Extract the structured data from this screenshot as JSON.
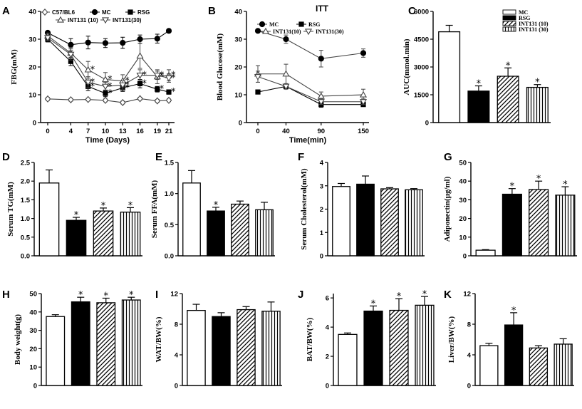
{
  "colors": {
    "ink": "#000000",
    "paper": "#ffffff",
    "grey": "#444444"
  },
  "groups": [
    "MC",
    "RSG",
    "INT131 (10)",
    "INT131 (30)"
  ],
  "chart_data": [
    {
      "id": "A",
      "label": "A",
      "type": "line",
      "title": "",
      "xlabel": "Time (Days)",
      "ylabel": "FBG(mM)",
      "xticks": [
        0,
        4,
        7,
        10,
        13,
        16,
        19,
        21
      ],
      "xlim": [
        0,
        21
      ],
      "yticks": [
        0,
        10,
        20,
        30,
        40
      ],
      "ylim": [
        0,
        40
      ],
      "legend": [
        "C57/BL6",
        "MC",
        "RSG",
        "INT131 (10)",
        "INT131(30)"
      ],
      "series": [
        {
          "name": "C57/BL6",
          "marker": "diamond-open",
          "color": "#444444",
          "x": [
            0,
            4,
            7,
            10,
            13,
            16,
            19,
            21
          ],
          "y": [
            8.5,
            8.2,
            8.3,
            8.0,
            7.2,
            8.6,
            7.8,
            8.0
          ],
          "err": [
            0.5,
            0.5,
            0.5,
            0.5,
            0.5,
            0.5,
            0.5,
            0.5
          ],
          "sig": []
        },
        {
          "name": "MC",
          "marker": "circle-filled",
          "color": "#000000",
          "x": [
            0,
            4,
            7,
            10,
            13,
            16,
            19,
            21
          ],
          "y": [
            32.3,
            28.0,
            28.8,
            28.6,
            28.7,
            30.0,
            30.2,
            33.0
          ],
          "err": [
            0.6,
            2.2,
            2.3,
            1.6,
            2.0,
            1.5,
            1.6,
            0.6
          ],
          "sig": []
        },
        {
          "name": "RSG",
          "marker": "square-filled",
          "color": "#000000",
          "x": [
            0,
            4,
            7,
            10,
            13,
            16,
            19,
            21
          ],
          "y": [
            30.0,
            22.0,
            13.0,
            10.5,
            12.5,
            14.0,
            12.0,
            11.0
          ],
          "err": [
            1.0,
            1.5,
            1.5,
            1.2,
            1.3,
            1.5,
            1.0,
            0.8
          ],
          "sig": [
            7,
            10,
            13,
            16,
            19,
            21
          ]
        },
        {
          "name": "INT131 (10)",
          "marker": "triangle-up-open",
          "color": "#444444",
          "x": [
            0,
            4,
            7,
            10,
            13,
            16,
            19,
            21
          ],
          "y": [
            31.2,
            25.0,
            19.0,
            15.5,
            15.0,
            24.0,
            16.5,
            17.0
          ],
          "err": [
            1.0,
            2.0,
            3.0,
            2.5,
            2.2,
            4.5,
            2.5,
            2.0
          ],
          "sig": [
            7,
            10,
            13,
            19,
            21
          ]
        },
        {
          "name": "INT131(30)",
          "marker": "triangle-down-open",
          "color": "#444444",
          "x": [
            0,
            4,
            7,
            10,
            13,
            16,
            19,
            21
          ],
          "y": [
            30.5,
            24.5,
            14.5,
            13.0,
            13.5,
            17.0,
            17.0,
            16.0
          ],
          "err": [
            1.0,
            2.0,
            2.0,
            1.5,
            1.5,
            2.0,
            1.5,
            1.5
          ],
          "sig": [
            7,
            10,
            13,
            16,
            19,
            21
          ]
        }
      ]
    },
    {
      "id": "B",
      "label": "B",
      "type": "line",
      "title": "ITT",
      "xlabel": "Time(min)",
      "ylabel": "Blood Glucose(mM)",
      "xticks": [
        0,
        40,
        90,
        150
      ],
      "xlim": [
        0,
        150
      ],
      "yticks": [
        0,
        10,
        20,
        30,
        40
      ],
      "ylim": [
        0,
        40
      ],
      "legend": [
        "MC",
        "RSG",
        "INT131(10)",
        "INT131(30)"
      ],
      "series": [
        {
          "name": "MC",
          "marker": "circle-filled",
          "color": "#444444",
          "x": [
            0,
            40,
            90,
            150
          ],
          "y": [
            33.0,
            30.0,
            23.0,
            25.0
          ],
          "err": [
            0.5,
            1.5,
            3.0,
            1.5
          ],
          "sig": []
        },
        {
          "name": "RSG",
          "marker": "square-filled",
          "color": "#000000",
          "x": [
            0,
            40,
            90,
            150
          ],
          "y": [
            11.0,
            13.0,
            6.5,
            6.5
          ],
          "err": [
            0.5,
            0.8,
            1.0,
            0.5
          ],
          "sig": []
        },
        {
          "name": "INT131(10)",
          "marker": "triangle-up-open",
          "color": "#444444",
          "x": [
            0,
            40,
            90,
            150
          ],
          "y": [
            17.5,
            17.5,
            9.5,
            10.0
          ],
          "err": [
            3.0,
            3.5,
            1.5,
            2.0
          ],
          "sig": []
        },
        {
          "name": "INT131(30)",
          "marker": "triangle-down-open",
          "color": "#444444",
          "x": [
            0,
            40,
            90,
            150
          ],
          "y": [
            16.5,
            13.0,
            7.5,
            7.5
          ],
          "err": [
            2.0,
            1.0,
            1.0,
            1.0
          ],
          "sig": []
        }
      ]
    },
    {
      "id": "C",
      "label": "C",
      "type": "bar",
      "title": "",
      "xlabel": "",
      "ylabel": "AUC(mmol.min)",
      "yticks": [
        0,
        1500,
        3000,
        4500,
        6000
      ],
      "ylim": [
        0,
        6000
      ],
      "values": [
        4900,
        1700,
        2500,
        1900
      ],
      "err": [
        350,
        280,
        450,
        150
      ],
      "sig": [
        false,
        true,
        true,
        true
      ],
      "legend": [
        "MC",
        "RSG",
        "INT131 (10)",
        "INT131 (30)"
      ]
    },
    {
      "id": "D",
      "label": "D",
      "type": "bar",
      "title": "",
      "xlabel": "",
      "ylabel": "Serum TG(mM)",
      "yticks": [
        0.0,
        0.5,
        1.0,
        1.5,
        2.0,
        2.5
      ],
      "ylim": [
        0,
        2.5
      ],
      "values": [
        1.95,
        0.95,
        1.2,
        1.17
      ],
      "err": [
        0.35,
        0.08,
        0.08,
        0.12
      ],
      "sig": [
        false,
        true,
        true,
        true
      ]
    },
    {
      "id": "E",
      "label": "E",
      "type": "bar",
      "title": "",
      "xlabel": "",
      "ylabel": "Serum FFA(mM)",
      "yticks": [
        0.0,
        0.5,
        1.0,
        1.5
      ],
      "ylim": [
        0,
        1.5
      ],
      "values": [
        1.17,
        0.72,
        0.83,
        0.74
      ],
      "err": [
        0.2,
        0.06,
        0.05,
        0.12
      ],
      "sig": [
        false,
        true,
        false,
        false
      ]
    },
    {
      "id": "F",
      "label": "F",
      "type": "bar",
      "title": "",
      "xlabel": "",
      "ylabel": "Serum Cholesterol(mM)",
      "yticks": [
        0,
        1,
        2,
        3,
        4
      ],
      "ylim": [
        0,
        4
      ],
      "values": [
        2.97,
        3.07,
        2.87,
        2.83
      ],
      "err": [
        0.13,
        0.35,
        0.05,
        0.05
      ],
      "sig": [
        false,
        false,
        false,
        false
      ]
    },
    {
      "id": "G",
      "label": "G",
      "type": "bar",
      "title": "",
      "xlabel": "",
      "ylabel": "Adiponectin(μg/ml)",
      "yticks": [
        0,
        10,
        20,
        30,
        40,
        50
      ],
      "ylim": [
        0,
        50
      ],
      "values": [
        3.0,
        33.0,
        35.5,
        32.5
      ],
      "err": [
        0.3,
        3.0,
        4.5,
        4.5
      ],
      "sig": [
        false,
        true,
        true,
        true
      ]
    },
    {
      "id": "H",
      "label": "H",
      "type": "bar",
      "title": "",
      "xlabel": "",
      "ylabel": "Body weight(g)",
      "yticks": [
        0,
        10,
        20,
        30,
        40,
        50
      ],
      "ylim": [
        0,
        50
      ],
      "values": [
        37.5,
        45.5,
        45.0,
        46.5
      ],
      "err": [
        1.0,
        2.5,
        2.5,
        1.5
      ],
      "sig": [
        false,
        true,
        true,
        true
      ]
    },
    {
      "id": "I",
      "label": "I",
      "type": "bar",
      "title": "",
      "xlabel": "",
      "ylabel": "WAT/BW(%)",
      "yticks": [
        0,
        4,
        8,
        12
      ],
      "ylim": [
        0,
        12
      ],
      "values": [
        9.8,
        9.0,
        9.9,
        9.7
      ],
      "err": [
        0.8,
        0.5,
        0.4,
        1.2
      ],
      "sig": [
        false,
        false,
        false,
        false
      ]
    },
    {
      "id": "J",
      "label": "J",
      "type": "bar",
      "title": "",
      "xlabel": "",
      "ylabel": "BAT/BW(%)",
      "yticks": [
        0,
        2,
        4,
        6
      ],
      "ylim": [
        0,
        6.3
      ],
      "values": [
        3.5,
        5.1,
        5.15,
        5.5
      ],
      "err": [
        0.1,
        0.35,
        0.8,
        0.6
      ],
      "sig": [
        false,
        true,
        true,
        true
      ]
    },
    {
      "id": "K",
      "label": "K",
      "type": "bar",
      "title": "",
      "xlabel": "",
      "ylabel": "Liver/BW(%)",
      "yticks": [
        0,
        4,
        8,
        12
      ],
      "ylim": [
        0,
        12
      ],
      "values": [
        5.2,
        7.9,
        4.9,
        5.4
      ],
      "err": [
        0.3,
        1.6,
        0.3,
        0.7
      ],
      "sig": [
        false,
        true,
        false,
        false
      ]
    }
  ]
}
